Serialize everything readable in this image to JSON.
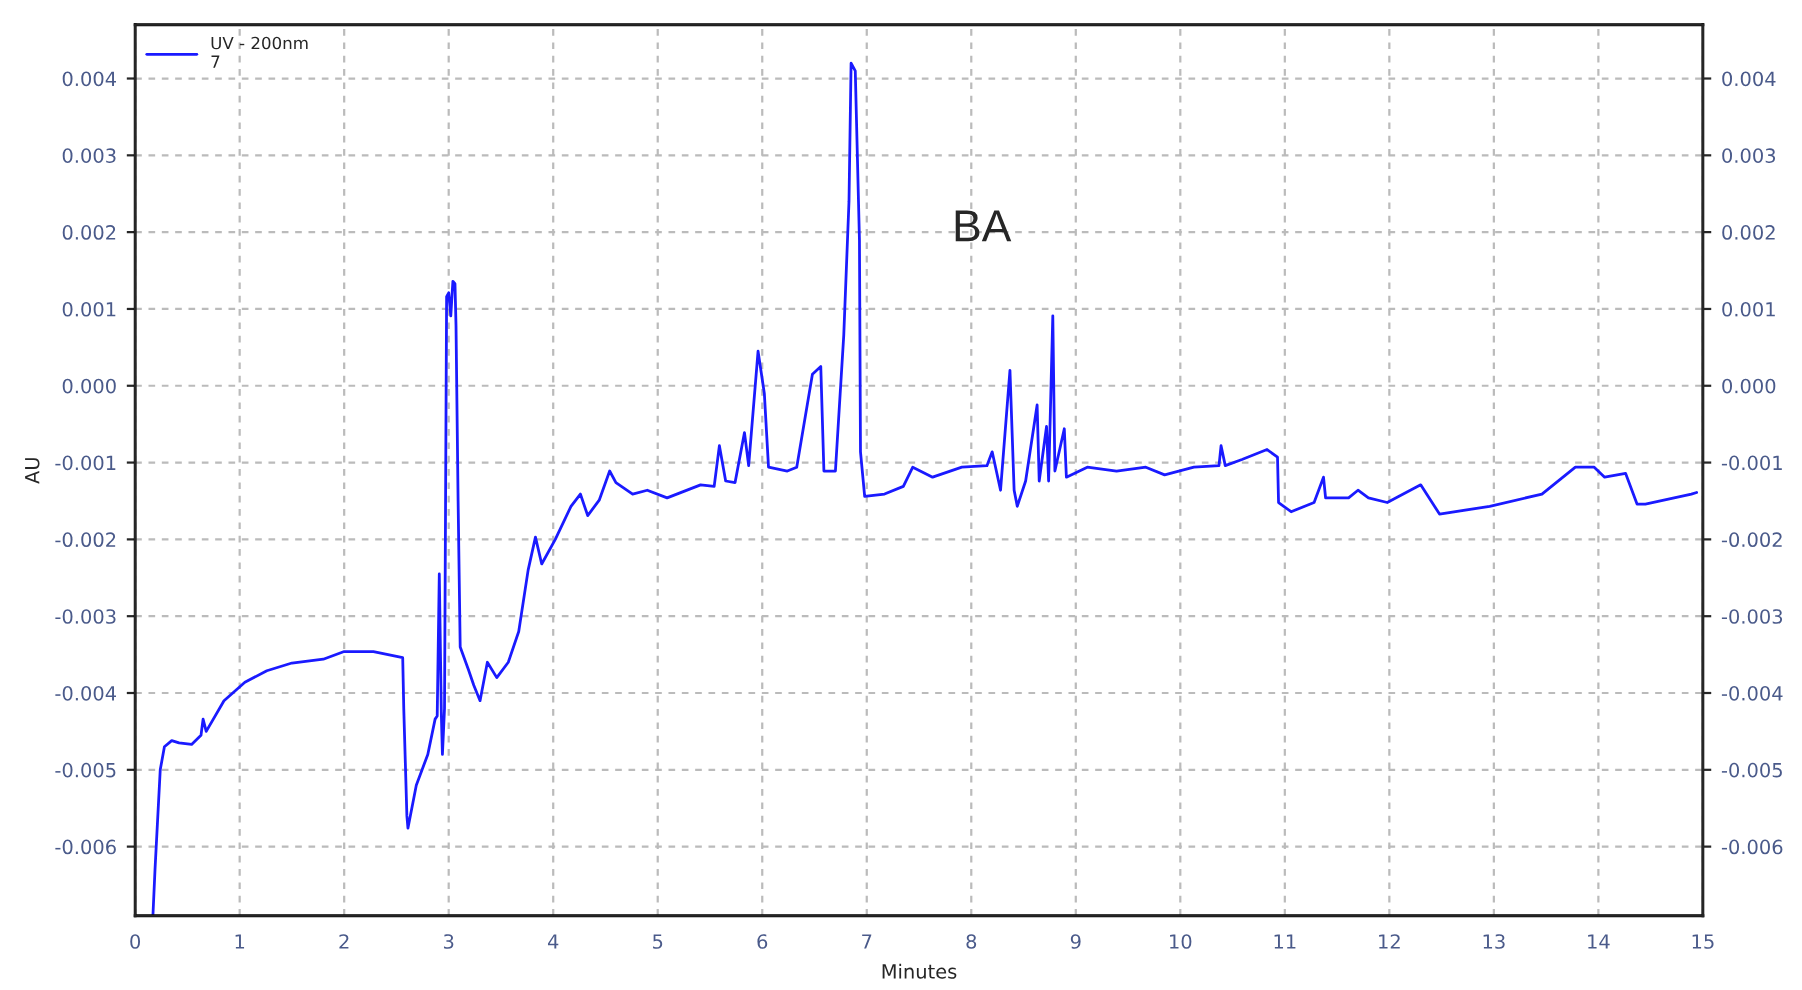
{
  "chart_data": {
    "type": "line",
    "xlabel": "Minutes",
    "ylabel": "AU",
    "annotations": [
      "BA"
    ],
    "xlim": [
      0,
      15
    ],
    "xticks": [
      0,
      1,
      2,
      3,
      4,
      5,
      6,
      7,
      8,
      9,
      10,
      11,
      12,
      13,
      14,
      15
    ],
    "ylim": [
      -0.0069,
      0.0047
    ],
    "yticks": [
      -0.006,
      -0.005,
      -0.004,
      -0.003,
      -0.002,
      -0.001,
      {
        "value": 0,
        "label": "0.000"
      },
      0.001,
      0.002,
      0.003,
      0.004
    ],
    "y2lim": [
      -0.0069,
      0.0047
    ],
    "y2ticks": [
      -0.006,
      -0.005,
      -0.004,
      -0.003,
      -0.002,
      -0.001,
      {
        "value": 0,
        "label": "0.000"
      },
      0.001,
      0.002,
      0.003,
      0.004
    ],
    "grid": true,
    "legend": "top left",
    "marker": "none",
    "line_style": "solid",
    "series": [
      {
        "name": "UV - 200nm\n7",
        "color": "#1a1aff",
        "x": [
          0.17,
          0.19,
          0.24,
          0.28,
          0.35,
          0.42,
          0.54,
          0.63,
          0.65,
          0.68,
          0.85,
          1.05,
          1.26,
          1.5,
          1.8,
          2.0,
          2.28,
          2.56,
          2.57,
          2.6,
          2.61,
          2.69,
          2.8,
          2.87,
          2.89,
          2.91,
          2.93,
          2.94,
          2.96,
          2.98,
          3.0,
          3.02,
          3.04,
          3.06,
          3.07,
          3.09,
          3.11,
          3.19,
          3.24,
          3.3,
          3.37,
          3.46,
          3.57,
          3.67,
          3.76,
          3.83,
          3.89,
          4.02,
          4.17,
          4.26,
          4.33,
          4.44,
          4.54,
          4.6,
          4.76,
          4.9,
          5.09,
          5.41,
          5.54,
          5.59,
          5.65,
          5.74,
          5.83,
          5.87,
          5.96,
          6.02,
          6.06,
          6.24,
          6.33,
          6.48,
          6.56,
          6.59,
          6.7,
          6.78,
          6.83,
          6.85,
          6.89,
          6.93,
          6.94,
          6.98,
          7.17,
          7.35,
          7.44,
          7.63,
          7.91,
          8.15,
          8.2,
          8.28,
          8.37,
          8.41,
          8.44,
          8.52,
          8.63,
          8.65,
          8.72,
          8.74,
          8.78,
          8.8,
          8.89,
          8.91,
          9.11,
          9.39,
          9.67,
          9.85,
          10.13,
          10.37,
          10.39,
          10.43,
          10.59,
          10.83,
          10.93,
          10.94,
          11.06,
          11.28,
          11.37,
          11.39,
          11.61,
          11.7,
          11.8,
          11.98,
          12.3,
          12.48,
          12.96,
          13.46,
          13.78,
          13.96,
          14.06,
          14.26,
          14.37,
          14.45,
          14.89,
          14.94
        ],
        "values": [
          -0.0069,
          -0.0063,
          -0.005,
          -0.0047,
          -0.00462,
          -0.00465,
          -0.00467,
          -0.00455,
          -0.00434,
          -0.0045,
          -0.0041,
          -0.00386,
          -0.00371,
          -0.00361,
          -0.00356,
          -0.00346,
          -0.00346,
          -0.00354,
          -0.0042,
          -0.0056,
          -0.00576,
          -0.0052,
          -0.0048,
          -0.00434,
          -0.0043,
          -0.00245,
          -0.0043,
          -0.0048,
          -0.0042,
          0.00116,
          0.00121,
          0.00091,
          0.00136,
          0.00133,
          0.00078,
          -0.0015,
          -0.0034,
          -0.0037,
          -0.0039,
          -0.0041,
          -0.0036,
          -0.0038,
          -0.0036,
          -0.0032,
          -0.0024,
          -0.00197,
          -0.00232,
          -0.002,
          -0.00157,
          -0.00141,
          -0.00169,
          -0.00149,
          -0.00111,
          -0.00126,
          -0.00141,
          -0.00136,
          -0.00146,
          -0.00129,
          -0.00131,
          -0.00078,
          -0.00124,
          -0.00126,
          -0.00061,
          -0.00104,
          0.00045,
          -0.0001,
          -0.00106,
          -0.00111,
          -0.00106,
          0.00015,
          0.00025,
          -0.00111,
          -0.00111,
          0.00066,
          0.0024,
          0.0042,
          0.0041,
          0.0019,
          -0.00086,
          -0.00144,
          -0.00141,
          -0.00131,
          -0.00106,
          -0.00119,
          -0.00106,
          -0.00104,
          -0.00086,
          -0.00136,
          0.0002,
          -0.00136,
          -0.00157,
          -0.00124,
          -0.00025,
          -0.00124,
          -0.00053,
          -0.00124,
          0.00091,
          -0.00111,
          -0.00056,
          -0.00119,
          -0.00106,
          -0.00111,
          -0.00106,
          -0.00116,
          -0.00106,
          -0.00104,
          -0.00078,
          -0.00104,
          -0.00096,
          -0.00083,
          -0.00093,
          -0.00152,
          -0.00164,
          -0.00152,
          -0.00119,
          -0.00146,
          -0.00146,
          -0.00136,
          -0.00146,
          -0.00152,
          -0.00129,
          -0.00167,
          -0.00157,
          -0.00141,
          -0.00106,
          -0.00106,
          -0.00119,
          -0.00114,
          -0.00154,
          -0.00154,
          -0.00141,
          -0.00139
        ]
      }
    ]
  }
}
